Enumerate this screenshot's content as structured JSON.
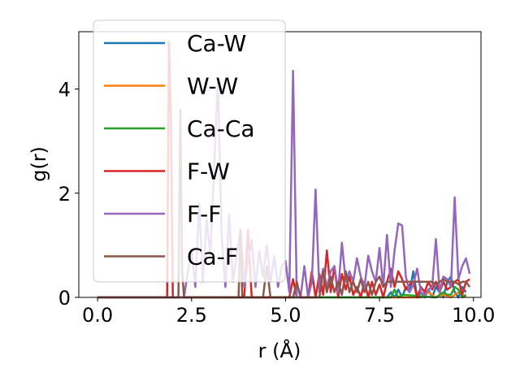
{
  "chart_data": {
    "type": "line",
    "xlabel": "r (Å)",
    "ylabel": "g(r)",
    "xlim": [
      -0.5,
      10.2
    ],
    "ylim": [
      0,
      5.1
    ],
    "xticks": [
      0.0,
      2.5,
      5.0,
      7.5,
      10.0
    ],
    "xtick_labels": [
      "0.0",
      "2.5",
      "5.0",
      "7.5",
      "10.0"
    ],
    "yticks": [
      0,
      2,
      4
    ],
    "ytick_labels": [
      "0",
      "2",
      "4"
    ],
    "grid": false,
    "legend_position": "top-left",
    "series": [
      {
        "name": "Ca-W",
        "color": "#1f77b4",
        "x": [
          0,
          7.7,
          7.8,
          7.9,
          8.0,
          8.1,
          8.2,
          8.3,
          8.4,
          8.5,
          8.6,
          8.7,
          8.8,
          8.9,
          9.0,
          9.1,
          9.2,
          9.3,
          9.4,
          9.5,
          9.6,
          9.7,
          9.8
        ],
        "y": [
          0,
          0,
          0.1,
          0,
          0.15,
          0,
          0.2,
          0.1,
          0.5,
          0,
          0.1,
          0,
          0.15,
          0,
          0.2,
          0.1,
          0,
          0.3,
          0.4,
          0.1,
          0,
          0.2,
          0.1
        ]
      },
      {
        "name": "W-W",
        "color": "#ff7f0e",
        "x": [
          0,
          8.6,
          8.8,
          9.0,
          9.2,
          9.4,
          9.6,
          9.8
        ],
        "y": [
          0,
          0,
          0.1,
          0,
          0.05,
          0,
          0.1,
          0
        ]
      },
      {
        "name": "Ca-Ca",
        "color": "#2ca02c",
        "x": [
          0,
          7.8,
          7.9,
          8.0,
          8.1,
          9.0,
          9.2,
          9.3,
          9.4,
          9.5,
          9.6,
          9.7,
          9.8
        ],
        "y": [
          0,
          0,
          0.15,
          0,
          0.05,
          0,
          0.1,
          0.05,
          0.05,
          0.2,
          0.15,
          0,
          0.05
        ]
      },
      {
        "name": "F-W",
        "color": "#d62728",
        "x": [
          0,
          1.85,
          1.9,
          1.95,
          2.0,
          3.9,
          4.0,
          4.1,
          5.1,
          5.2,
          5.3,
          5.6,
          5.7,
          5.8,
          5.9,
          6.0,
          6.1,
          6.2,
          6.3,
          6.4,
          6.5,
          6.6,
          6.7,
          6.8,
          6.9,
          7.0,
          7.1,
          7.2,
          7.3,
          7.4,
          7.5,
          7.6,
          7.7,
          7.8,
          7.9,
          8.0,
          8.1,
          8.2,
          8.3,
          8.4,
          8.5,
          8.6,
          8.7,
          8.8,
          8.9,
          9.0,
          9.1,
          9.2,
          9.3,
          9.4,
          9.5,
          9.6,
          9.7,
          9.8,
          9.9
        ],
        "y": [
          0,
          0,
          4.9,
          3.5,
          0,
          0,
          1.3,
          0,
          0,
          0.35,
          0,
          0,
          0.5,
          0,
          0.45,
          0.05,
          0.9,
          0.1,
          0.6,
          0,
          0.45,
          0.15,
          0.4,
          0.05,
          0.2,
          0,
          0.3,
          0,
          0.3,
          0.05,
          0.25,
          0,
          0.3,
          0.55,
          0.2,
          0.5,
          0.35,
          0.15,
          0.25,
          0.3,
          0,
          0.2,
          0.1,
          0.3,
          0.15,
          0.3,
          0.1,
          0.3,
          0.15,
          0.2,
          0.3,
          0.35,
          0.05,
          0.3,
          0.35
        ]
      },
      {
        "name": "F-F",
        "color": "#9467bd",
        "x": [
          0,
          2.3,
          2.4,
          2.5,
          2.6,
          2.7,
          2.8,
          2.9,
          3.0,
          3.1,
          3.2,
          3.3,
          3.4,
          3.5,
          3.6,
          3.7,
          3.8,
          3.9,
          4.0,
          4.1,
          4.2,
          4.3,
          4.4,
          4.5,
          4.6,
          4.7,
          4.8,
          4.9,
          5.0,
          5.1,
          5.2,
          5.3,
          5.4,
          5.5,
          5.6,
          5.7,
          5.8,
          5.9,
          6.0,
          6.1,
          6.2,
          6.3,
          6.4,
          6.5,
          6.6,
          6.7,
          6.8,
          6.9,
          7.0,
          7.1,
          7.2,
          7.3,
          7.4,
          7.5,
          7.6,
          7.7,
          7.8,
          7.9,
          8.0,
          8.1,
          8.2,
          8.3,
          8.4,
          8.5,
          8.6,
          8.7,
          8.8,
          8.9,
          9.0,
          9.1,
          9.2,
          9.3,
          9.4,
          9.5,
          9.6,
          9.7,
          9.8,
          9.9
        ],
        "y": [
          0,
          0,
          0.5,
          0.9,
          0.2,
          1.8,
          0.3,
          1.5,
          0.8,
          2.5,
          4.2,
          1.2,
          0.2,
          1.6,
          0.3,
          0.8,
          1.3,
          0.2,
          0.7,
          1.1,
          0.2,
          0.9,
          0.4,
          1.0,
          0.3,
          0.8,
          0.2,
          0.6,
          0.7,
          0.1,
          4.35,
          0,
          0,
          0.6,
          0,
          0.3,
          2.07,
          0.1,
          0.55,
          0.2,
          0.5,
          0.6,
          0.1,
          1.05,
          0.3,
          0.5,
          0.3,
          0.75,
          0.4,
          0.2,
          0.8,
          0.5,
          0.3,
          0.95,
          0.2,
          1.2,
          0.2,
          0.9,
          1.42,
          1.38,
          0.4,
          0.1,
          0.25,
          0.55,
          0.1,
          0.05,
          0.15,
          0.2,
          1.12,
          0.1,
          0.4,
          0.35,
          0.2,
          1.92,
          0.35,
          0.6,
          0.75,
          0.45
        ]
      },
      {
        "name": "Ca-F",
        "color": "#8c564b",
        "x": [
          0,
          2.15,
          2.2,
          2.25,
          2.3,
          3.75,
          3.8,
          3.85,
          4.4,
          4.5,
          4.6,
          5.2,
          5.3,
          5.4,
          5.9,
          6.0,
          6.1,
          6.2,
          6.3,
          6.4,
          6.5,
          6.6,
          6.7,
          6.8,
          6.9,
          7.0,
          7.1,
          7.2,
          7.3,
          7.4,
          7.5,
          7.6,
          7.7,
          7.8,
          7.9,
          8.0,
          8.1,
          8.2,
          8.3,
          8.4,
          8.5,
          8.6,
          8.7,
          8.8,
          8.9,
          9.0,
          9.1,
          9.2,
          9.3,
          9.4,
          9.5,
          9.6,
          9.7,
          9.8,
          9.9
        ],
        "y": [
          0,
          0,
          3.6,
          0.5,
          0,
          0,
          1.3,
          0,
          0,
          0.6,
          0,
          0,
          0.3,
          0,
          0,
          0.5,
          0.1,
          0.4,
          0.1,
          0.3,
          0.05,
          0.5,
          0.1,
          0.3,
          0.1,
          0.35,
          0.1,
          0.3,
          0.05,
          0.3,
          0.4,
          0.2,
          0.3,
          0.3,
          0.3,
          0.3,
          0.3,
          0.3,
          0.3,
          0.3,
          0.3,
          0.3,
          0.3,
          0.3,
          0.3,
          0.25,
          0.3,
          0.35,
          0.3,
          0.3,
          0.3,
          0.25,
          0.3,
          0.3,
          0.2
        ]
      }
    ]
  }
}
